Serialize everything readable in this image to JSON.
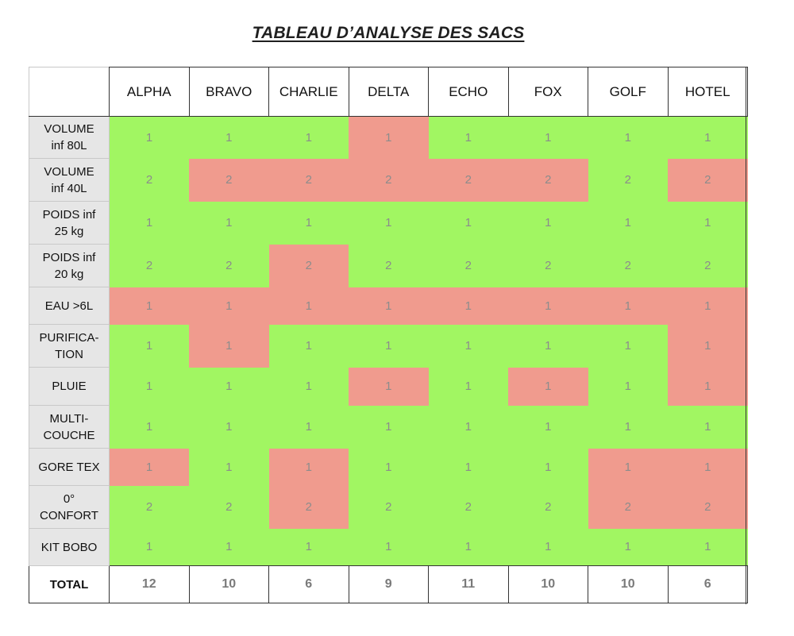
{
  "title": "TABLEAU D’ANALYSE DES SACS",
  "colors": {
    "ok": "#a1f662",
    "ko": "#f09b8e",
    "label_bg": "#e6e6e6"
  },
  "columns": [
    "ALPHA",
    "BRAVO",
    "CHARLIE",
    "DELTA",
    "ECHO",
    "FOX",
    "GOLF",
    "HOTEL"
  ],
  "rows": [
    {
      "label_lines": [
        "VOLUME",
        "inf 80L"
      ],
      "cells": [
        {
          "value": "1",
          "status": "ok"
        },
        {
          "value": "1",
          "status": "ok"
        },
        {
          "value": "1",
          "status": "ok"
        },
        {
          "value": "1",
          "status": "ko"
        },
        {
          "value": "1",
          "status": "ok"
        },
        {
          "value": "1",
          "status": "ok"
        },
        {
          "value": "1",
          "status": "ok"
        },
        {
          "value": "1",
          "status": "ok"
        }
      ]
    },
    {
      "label_lines": [
        "VOLUME",
        "inf 40L"
      ],
      "cells": [
        {
          "value": "2",
          "status": "ok"
        },
        {
          "value": "2",
          "status": "ko"
        },
        {
          "value": "2",
          "status": "ko"
        },
        {
          "value": "2",
          "status": "ko"
        },
        {
          "value": "2",
          "status": "ko"
        },
        {
          "value": "2",
          "status": "ko"
        },
        {
          "value": "2",
          "status": "ok"
        },
        {
          "value": "2",
          "status": "ko"
        }
      ]
    },
    {
      "label_lines": [
        "POIDS inf",
        "25 kg"
      ],
      "cells": [
        {
          "value": "1",
          "status": "ok"
        },
        {
          "value": "1",
          "status": "ok"
        },
        {
          "value": "1",
          "status": "ok"
        },
        {
          "value": "1",
          "status": "ok"
        },
        {
          "value": "1",
          "status": "ok"
        },
        {
          "value": "1",
          "status": "ok"
        },
        {
          "value": "1",
          "status": "ok"
        },
        {
          "value": "1",
          "status": "ok"
        }
      ]
    },
    {
      "label_lines": [
        "POIDS inf",
        "20 kg"
      ],
      "cells": [
        {
          "value": "2",
          "status": "ok"
        },
        {
          "value": "2",
          "status": "ok"
        },
        {
          "value": "2",
          "status": "ko"
        },
        {
          "value": "2",
          "status": "ok"
        },
        {
          "value": "2",
          "status": "ok"
        },
        {
          "value": "2",
          "status": "ok"
        },
        {
          "value": "2",
          "status": "ok"
        },
        {
          "value": "2",
          "status": "ok"
        }
      ]
    },
    {
      "label_lines": [
        "EAU >6L"
      ],
      "cells": [
        {
          "value": "1",
          "status": "ko"
        },
        {
          "value": "1",
          "status": "ko"
        },
        {
          "value": "1",
          "status": "ko"
        },
        {
          "value": "1",
          "status": "ko"
        },
        {
          "value": "1",
          "status": "ko"
        },
        {
          "value": "1",
          "status": "ko"
        },
        {
          "value": "1",
          "status": "ko"
        },
        {
          "value": "1",
          "status": "ko"
        }
      ]
    },
    {
      "label_lines": [
        "PURIFICA-",
        "TION"
      ],
      "cells": [
        {
          "value": "1",
          "status": "ok"
        },
        {
          "value": "1",
          "status": "ko"
        },
        {
          "value": "1",
          "status": "ok"
        },
        {
          "value": "1",
          "status": "ok"
        },
        {
          "value": "1",
          "status": "ok"
        },
        {
          "value": "1",
          "status": "ok"
        },
        {
          "value": "1",
          "status": "ok"
        },
        {
          "value": "1",
          "status": "ko"
        }
      ]
    },
    {
      "label_lines": [
        "PLUIE"
      ],
      "cells": [
        {
          "value": "1",
          "status": "ok"
        },
        {
          "value": "1",
          "status": "ok"
        },
        {
          "value": "1",
          "status": "ok"
        },
        {
          "value": "1",
          "status": "ko"
        },
        {
          "value": "1",
          "status": "ok"
        },
        {
          "value": "1",
          "status": "ko"
        },
        {
          "value": "1",
          "status": "ok"
        },
        {
          "value": "1",
          "status": "ko"
        }
      ]
    },
    {
      "label_lines": [
        "MULTI-",
        "COUCHE"
      ],
      "cells": [
        {
          "value": "1",
          "status": "ok"
        },
        {
          "value": "1",
          "status": "ok"
        },
        {
          "value": "1",
          "status": "ok"
        },
        {
          "value": "1",
          "status": "ok"
        },
        {
          "value": "1",
          "status": "ok"
        },
        {
          "value": "1",
          "status": "ok"
        },
        {
          "value": "1",
          "status": "ok"
        },
        {
          "value": "1",
          "status": "ok"
        }
      ]
    },
    {
      "label_lines": [
        "GORE TEX"
      ],
      "cells": [
        {
          "value": "1",
          "status": "ko"
        },
        {
          "value": "1",
          "status": "ok"
        },
        {
          "value": "1",
          "status": "ko"
        },
        {
          "value": "1",
          "status": "ok"
        },
        {
          "value": "1",
          "status": "ok"
        },
        {
          "value": "1",
          "status": "ok"
        },
        {
          "value": "1",
          "status": "ko"
        },
        {
          "value": "1",
          "status": "ko"
        }
      ]
    },
    {
      "label_lines": [
        "0°",
        "CONFORT"
      ],
      "cells": [
        {
          "value": "2",
          "status": "ok"
        },
        {
          "value": "2",
          "status": "ok"
        },
        {
          "value": "2",
          "status": "ko"
        },
        {
          "value": "2",
          "status": "ok"
        },
        {
          "value": "2",
          "status": "ok"
        },
        {
          "value": "2",
          "status": "ok"
        },
        {
          "value": "2",
          "status": "ko"
        },
        {
          "value": "2",
          "status": "ko"
        }
      ]
    },
    {
      "label_lines": [
        "KIT BOBO"
      ],
      "cells": [
        {
          "value": "1",
          "status": "ok"
        },
        {
          "value": "1",
          "status": "ok"
        },
        {
          "value": "1",
          "status": "ok"
        },
        {
          "value": "1",
          "status": "ok"
        },
        {
          "value": "1",
          "status": "ok"
        },
        {
          "value": "1",
          "status": "ok"
        },
        {
          "value": "1",
          "status": "ok"
        },
        {
          "value": "1",
          "status": "ok"
        }
      ]
    }
  ],
  "total": {
    "label": "TOTAL",
    "values": [
      "12",
      "10",
      "6",
      "9",
      "11",
      "10",
      "10",
      "6"
    ]
  }
}
